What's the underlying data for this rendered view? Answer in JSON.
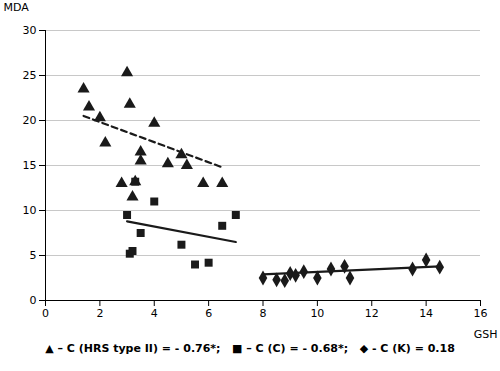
{
  "chart_data": {
    "type": "scatter",
    "xlabel": "GSH",
    "ylabel": "MDA",
    "xlim": [
      0,
      16
    ],
    "ylim": [
      0,
      30
    ],
    "xticks": [
      0,
      2,
      4,
      6,
      8,
      10,
      12,
      14,
      16
    ],
    "yticks": [
      0,
      5,
      10,
      15,
      20,
      25,
      30
    ],
    "grid": "y",
    "annotation": "▲ – C (HRS type II) = - 0.76*;   ■ – C (C) = - 0.68*;   ◆ - C (K) = 0.18",
    "series": [
      {
        "type": "scatter",
        "marker": "triangle",
        "color": "#1a1a1a",
        "x": [
          1.4,
          1.6,
          2.0,
          2.2,
          2.8,
          3.0,
          3.1,
          3.2,
          3.3,
          3.5,
          3.5,
          4.0,
          4.5,
          5.0,
          5.2,
          5.8,
          6.5
        ],
        "values": [
          23.5,
          21.5,
          20.3,
          17.5,
          13.0,
          25.3,
          21.8,
          11.5,
          13.2,
          16.5,
          15.5,
          19.7,
          15.2,
          16.2,
          15.0,
          13.0,
          13.0
        ]
      },
      {
        "type": "scatter",
        "marker": "square",
        "color": "#1a1a1a",
        "x": [
          3.0,
          3.1,
          3.2,
          3.3,
          3.5,
          4.0,
          5.0,
          5.5,
          6.0,
          6.5,
          7.0
        ],
        "values": [
          9.5,
          5.2,
          5.5,
          13.2,
          7.5,
          11.0,
          6.2,
          4.0,
          4.2,
          8.3,
          9.5
        ]
      },
      {
        "type": "scatter",
        "marker": "diamond",
        "color": "#1a1a1a",
        "x": [
          8.0,
          8.5,
          8.8,
          9.0,
          9.2,
          9.5,
          10.0,
          10.5,
          11.0,
          11.2,
          13.5,
          14.0,
          14.5
        ],
        "values": [
          2.5,
          2.3,
          2.2,
          3.0,
          2.8,
          3.2,
          2.5,
          3.5,
          3.8,
          2.5,
          3.5,
          4.5,
          3.7
        ]
      },
      {
        "type": "line",
        "line_style": "dashed",
        "color": "#1a1a1a",
        "x": [
          1.4,
          6.5
        ],
        "values": [
          20.5,
          14.8
        ]
      },
      {
        "type": "line",
        "line_style": "solid",
        "color": "#1a1a1a",
        "x": [
          3.0,
          7.0
        ],
        "values": [
          8.8,
          6.5
        ]
      },
      {
        "type": "line",
        "line_style": "solid",
        "color": "#1a1a1a",
        "x": [
          8.0,
          14.5
        ],
        "values": [
          2.9,
          3.8
        ]
      }
    ]
  }
}
